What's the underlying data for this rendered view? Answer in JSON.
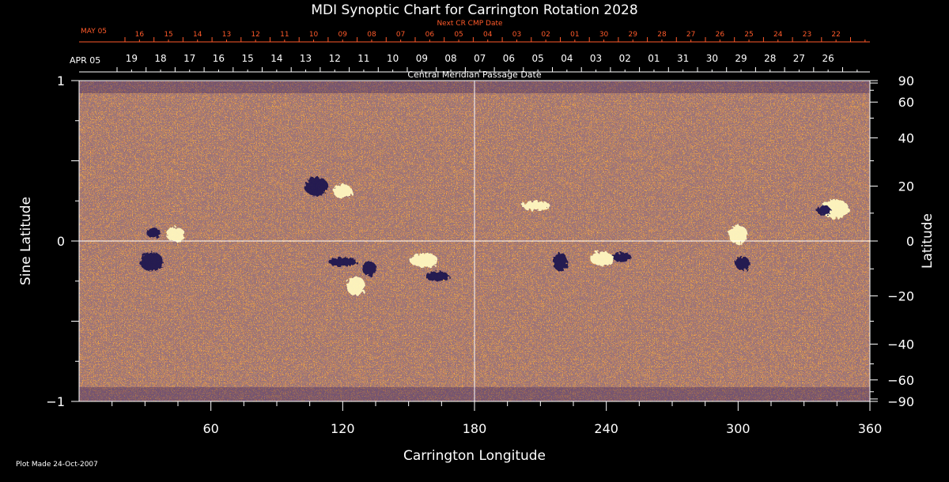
{
  "chart_data": {
    "type": "heatmap",
    "title": "MDI Synoptic Chart for Carrington Rotation 2028",
    "xlabel": "Carrington Longitude",
    "ylabel_left": "Sine Latitude",
    "ylabel_right": "Latitude",
    "xlim": [
      0,
      360
    ],
    "ylim": [
      -1,
      1
    ],
    "x_ticks": [
      60,
      120,
      180,
      240,
      300,
      360
    ],
    "y_ticks_left": [
      {
        "value": 1,
        "label": "1"
      },
      {
        "value": 0,
        "label": "0"
      },
      {
        "value": -1,
        "label": "−1"
      }
    ],
    "y_ticks_right": [
      {
        "deg": 90,
        "label": "90"
      },
      {
        "deg": 60,
        "label": "60"
      },
      {
        "deg": 40,
        "label": "40"
      },
      {
        "deg": 20,
        "label": "20"
      },
      {
        "deg": 0,
        "label": "0"
      },
      {
        "deg": -20,
        "label": "−20"
      },
      {
        "deg": -40,
        "label": "−40"
      },
      {
        "deg": -60,
        "label": "−60"
      },
      {
        "deg": -90,
        "label": "−90"
      }
    ],
    "grid": "center crosshair",
    "colors": {
      "background": "#000000",
      "field_base": "#e0621a",
      "positive": "#fff8c0",
      "negative": "#1a1450",
      "next_axis": "#ff5a2a",
      "axis": "#ffffff"
    },
    "cmp_axis": {
      "label": "Central Meridian Passage Date",
      "start_label": "APR 05",
      "dates": [
        "19",
        "18",
        "17",
        "16",
        "15",
        "14",
        "13",
        "12",
        "11",
        "10",
        "09",
        "08",
        "07",
        "06",
        "05",
        "04",
        "03",
        "02",
        "01",
        "31",
        "30",
        "29",
        "28",
        "27",
        "26"
      ]
    },
    "next_cmp_axis": {
      "label": "Next CR CMP Date",
      "start_label": "MAY 05",
      "dates": [
        "16",
        "15",
        "14",
        "13",
        "12",
        "11",
        "10",
        "09",
        "08",
        "07",
        "06",
        "05",
        "04",
        "03",
        "02",
        "01",
        "30",
        "29",
        "28",
        "27",
        "26",
        "25",
        "24",
        "23",
        "22"
      ]
    },
    "active_regions": [
      {
        "lon": 34,
        "sinlat": 0.05,
        "polarity": "negative"
      },
      {
        "lon": 44,
        "sinlat": 0.04,
        "polarity": "positive"
      },
      {
        "lon": 33,
        "sinlat": -0.13,
        "polarity": "negative"
      },
      {
        "lon": 120,
        "sinlat": -0.13,
        "polarity": "negative"
      },
      {
        "lon": 132,
        "sinlat": -0.17,
        "polarity": "negative"
      },
      {
        "lon": 126,
        "sinlat": -0.28,
        "polarity": "positive"
      },
      {
        "lon": 163,
        "sinlat": -0.22,
        "polarity": "negative"
      },
      {
        "lon": 157,
        "sinlat": -0.12,
        "polarity": "positive"
      },
      {
        "lon": 219,
        "sinlat": -0.13,
        "polarity": "negative"
      },
      {
        "lon": 247,
        "sinlat": -0.1,
        "polarity": "negative"
      },
      {
        "lon": 238,
        "sinlat": -0.11,
        "polarity": "positive"
      },
      {
        "lon": 344,
        "sinlat": 0.2,
        "polarity": "positive"
      },
      {
        "lon": 339,
        "sinlat": 0.19,
        "polarity": "negative"
      },
      {
        "lon": 120,
        "sinlat": 0.31,
        "polarity": "positive"
      },
      {
        "lon": 108,
        "sinlat": 0.34,
        "polarity": "negative"
      },
      {
        "lon": 208,
        "sinlat": 0.22,
        "polarity": "positive"
      },
      {
        "lon": 302,
        "sinlat": -0.14,
        "polarity": "negative"
      },
      {
        "lon": 300,
        "sinlat": 0.04,
        "polarity": "positive"
      }
    ]
  },
  "footer": {
    "plot_made": "Plot Made 24-Oct-2007"
  }
}
